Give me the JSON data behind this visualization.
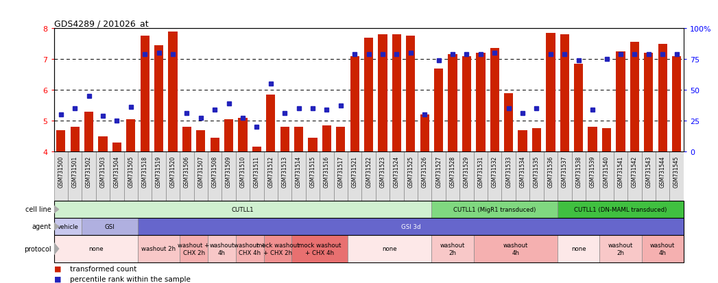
{
  "title": "GDS4289 / 201026_at",
  "samples": [
    "GSM731500",
    "GSM731501",
    "GSM731502",
    "GSM731503",
    "GSM731504",
    "GSM731505",
    "GSM731518",
    "GSM731519",
    "GSM731520",
    "GSM731506",
    "GSM731507",
    "GSM731508",
    "GSM731509",
    "GSM731510",
    "GSM731511",
    "GSM731512",
    "GSM731513",
    "GSM731514",
    "GSM731515",
    "GSM731516",
    "GSM731517",
    "GSM731521",
    "GSM731522",
    "GSM731523",
    "GSM731524",
    "GSM731525",
    "GSM731526",
    "GSM731527",
    "GSM731528",
    "GSM731529",
    "GSM731531",
    "GSM731532",
    "GSM731533",
    "GSM731534",
    "GSM731535",
    "GSM731536",
    "GSM731537",
    "GSM731538",
    "GSM731539",
    "GSM731540",
    "GSM731541",
    "GSM731542",
    "GSM731543",
    "GSM731544",
    "GSM731545"
  ],
  "bar_values": [
    4.7,
    4.8,
    5.3,
    4.5,
    4.3,
    5.05,
    7.75,
    7.45,
    7.9,
    4.8,
    4.7,
    4.45,
    5.05,
    5.1,
    4.15,
    5.85,
    4.8,
    4.8,
    4.45,
    4.85,
    4.8,
    7.1,
    7.7,
    7.8,
    7.8,
    7.75,
    5.2,
    6.7,
    7.15,
    7.1,
    7.2,
    7.35,
    5.9,
    4.7,
    4.75,
    7.85,
    7.8,
    6.85,
    4.8,
    4.75,
    7.25,
    7.55,
    7.2,
    7.5,
    7.1
  ],
  "dot_values": [
    5.2,
    5.4,
    5.8,
    5.15,
    5.0,
    5.45,
    7.15,
    7.2,
    7.15,
    5.25,
    5.1,
    5.35,
    5.55,
    5.1,
    4.8,
    6.2,
    5.25,
    5.4,
    5.4,
    5.35,
    5.5,
    7.15,
    7.15,
    7.15,
    7.15,
    7.2,
    5.2,
    6.95,
    7.15,
    7.15,
    7.15,
    7.2,
    5.4,
    5.25,
    5.4,
    7.15,
    7.15,
    6.95,
    5.35,
    7.0,
    7.15,
    7.15,
    7.15,
    7.15,
    7.15
  ],
  "bar_color": "#cc2200",
  "dot_color": "#2222bb",
  "ylim_left": [
    4.0,
    8.0
  ],
  "ylim_right": [
    0,
    100
  ],
  "yticks_left": [
    4,
    5,
    6,
    7,
    8
  ],
  "yticks_right": [
    0,
    25,
    50,
    75,
    100
  ],
  "ytick_labels_right": [
    "0",
    "25",
    "50",
    "75",
    "100%"
  ],
  "hlines": [
    5.0,
    6.0,
    7.0
  ],
  "cell_line_groups": [
    {
      "label": "CUTLL1",
      "start": 0,
      "end": 27,
      "color": "#d0f0d0"
    },
    {
      "label": "CUTLL1 (MigR1 transduced)",
      "start": 27,
      "end": 36,
      "color": "#80d880"
    },
    {
      "label": "CUTLL1 (DN-MAML transduced)",
      "start": 36,
      "end": 45,
      "color": "#40c040"
    }
  ],
  "agent_groups": [
    {
      "label": "vehicle",
      "start": 0,
      "end": 2,
      "color": "#c8c8ee"
    },
    {
      "label": "GSI",
      "start": 2,
      "end": 6,
      "color": "#b0b0e0"
    },
    {
      "label": "GSI 3d",
      "start": 6,
      "end": 45,
      "color": "#6666cc"
    }
  ],
  "protocol_groups": [
    {
      "label": "none",
      "start": 0,
      "end": 6,
      "color": "#fde8e8"
    },
    {
      "label": "washout 2h",
      "start": 6,
      "end": 9,
      "color": "#f8c8c8"
    },
    {
      "label": "washout +\nCHX 2h",
      "start": 9,
      "end": 11,
      "color": "#f5b0b0"
    },
    {
      "label": "washout\n4h",
      "start": 11,
      "end": 13,
      "color": "#f8c8c8"
    },
    {
      "label": "washout +\nCHX 4h",
      "start": 13,
      "end": 15,
      "color": "#f5b0b0"
    },
    {
      "label": "mock washout\n+ CHX 2h",
      "start": 15,
      "end": 17,
      "color": "#f09090"
    },
    {
      "label": "mock washout\n+ CHX 4h",
      "start": 17,
      "end": 21,
      "color": "#e87070"
    },
    {
      "label": "none",
      "start": 21,
      "end": 27,
      "color": "#fde8e8"
    },
    {
      "label": "washout\n2h",
      "start": 27,
      "end": 30,
      "color": "#f8c8c8"
    },
    {
      "label": "washout\n4h",
      "start": 30,
      "end": 36,
      "color": "#f5b0b0"
    },
    {
      "label": "none",
      "start": 36,
      "end": 39,
      "color": "#fde8e8"
    },
    {
      "label": "washout\n2h",
      "start": 39,
      "end": 42,
      "color": "#f8c8c8"
    },
    {
      "label": "washout\n4h",
      "start": 42,
      "end": 45,
      "color": "#f5b0b0"
    }
  ],
  "legend_bar_label": "transformed count",
  "legend_dot_label": "percentile rank within the sample",
  "xtick_bg": "#e0e0e0",
  "xtick_border": "#888888"
}
